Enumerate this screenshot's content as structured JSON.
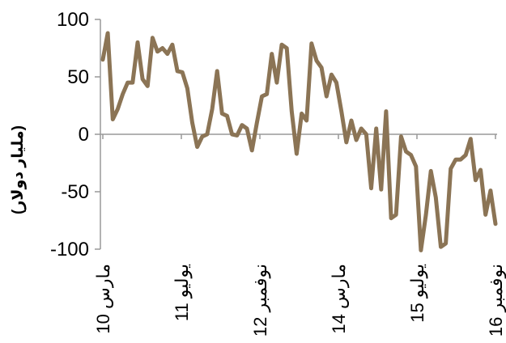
{
  "chart_data": {
    "type": "line",
    "ylabel": "(مليار دولار)",
    "ylim": [
      -100,
      100
    ],
    "yticks": [
      -100,
      -50,
      0,
      50,
      100
    ],
    "xticks": [
      "مارس 10",
      "يوليو 11",
      "نوفمبر 12",
      "مارس 14",
      "يوليو 15",
      "نوفمبر 16"
    ],
    "x_range": [
      0,
      80
    ],
    "xtick_positions": [
      0,
      16,
      32,
      48,
      64,
      80
    ],
    "grid": false,
    "line_color": "#8B7455",
    "series": [
      {
        "values": [
          65,
          88,
          13,
          22,
          35,
          45,
          45,
          80,
          48,
          42,
          84,
          72,
          75,
          70,
          78,
          55,
          54,
          40,
          10,
          -11,
          -2,
          0,
          22,
          55,
          18,
          16,
          0,
          -1,
          8,
          5,
          -14,
          10,
          33,
          35,
          70,
          45,
          78,
          75,
          20,
          -17,
          18,
          12,
          79,
          64,
          58,
          33,
          52,
          45,
          20,
          -7,
          12,
          -5,
          5,
          0,
          -47,
          5,
          -48,
          20,
          -73,
          -70,
          -2,
          -15,
          -18,
          -28,
          -101,
          -70,
          -32,
          -55,
          -98,
          -95,
          -30,
          -22,
          -22,
          -18,
          -4,
          -40,
          -31,
          -70,
          -49,
          -78
        ]
      }
    ]
  }
}
